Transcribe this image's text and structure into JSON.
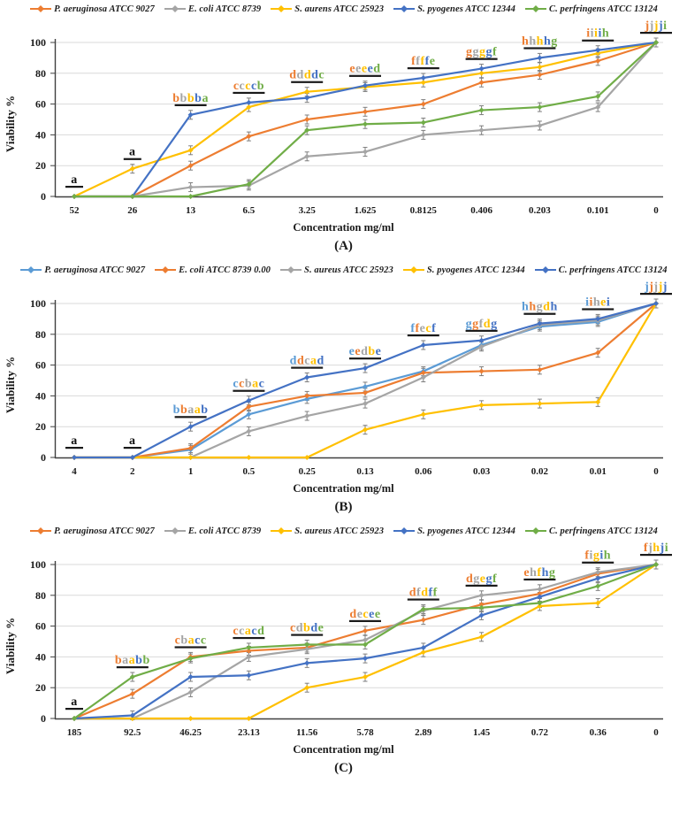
{
  "y_ticks": [
    0,
    20,
    40,
    60,
    80,
    100
  ],
  "chart_data": "see charts[] below",
  "charts": [
    {
      "id": "A",
      "type": "line",
      "caption": "(A)",
      "ylabel": "Viability %",
      "xlabel": "Concentration mg/ml",
      "ylim": [
        0,
        100
      ],
      "grid": true,
      "legend_position": "top",
      "categories": [
        "52",
        "26",
        "13",
        "6.5",
        "3.25",
        "1.625",
        "0.8125",
        "0.406",
        "0.203",
        "0.101",
        "0"
      ],
      "series": [
        {
          "name": "P. aeruginosa ATCC 9027",
          "color": "#ED7D31",
          "values": [
            0,
            0,
            20,
            39,
            50,
            55,
            60,
            74,
            79,
            88,
            100
          ]
        },
        {
          "name": "E. coli ATCC 8739",
          "color": "#A5A5A5",
          "values": [
            0,
            0,
            6,
            7,
            26,
            29,
            40,
            43,
            46,
            58,
            100
          ]
        },
        {
          "name": "S. aurens ATCC 25923",
          "color": "#FFC000",
          "values": [
            0,
            18,
            30,
            58,
            68,
            71,
            74,
            80,
            84,
            93,
            100
          ]
        },
        {
          "name": "S. pyogenes ATCC 12344",
          "color": "#4472C4",
          "values": [
            0,
            0,
            53,
            61,
            64,
            72,
            77,
            83,
            90,
            95,
            100
          ]
        },
        {
          "name": "C. perfringens ATCC 13124",
          "color": "#70AD47",
          "values": [
            0,
            0,
            0,
            8,
            43,
            47,
            48,
            56,
            58,
            65,
            100
          ]
        }
      ],
      "annotations": [
        {
          "x": "52",
          "label": "a"
        },
        {
          "x": "26",
          "label": "a"
        },
        {
          "x": "13",
          "label": "bbbba"
        },
        {
          "x": "6.5",
          "label": "ccccb"
        },
        {
          "x": "3.25",
          "label": "ddddc"
        },
        {
          "x": "1.625",
          "label": "eeeed"
        },
        {
          "x": "0.8125",
          "label": "ffffe"
        },
        {
          "x": "0.406",
          "label": "ggggf"
        },
        {
          "x": "0.203",
          "label": "hhhhg"
        },
        {
          "x": "0.101",
          "label": "iiiih"
        },
        {
          "x": "0",
          "label": "jjjji"
        }
      ]
    },
    {
      "id": "B",
      "type": "line",
      "caption": "(B)",
      "ylabel": "Viability %",
      "xlabel": "Concentration mg/ml",
      "ylim": [
        0,
        100
      ],
      "grid": true,
      "legend_position": "top",
      "categories": [
        "4",
        "2",
        "1",
        "0.5",
        "0.25",
        "0.13",
        "0.06",
        "0.03",
        "0.02",
        "0.01",
        "0"
      ],
      "series": [
        {
          "name": "P. aeruginosa ATCC 9027",
          "color": "#5B9BD5",
          "values": [
            0,
            0,
            5,
            28,
            38,
            46,
            56,
            73,
            85,
            88,
            100
          ]
        },
        {
          "name": "E. coli ATCC 8739 0.00",
          "color": "#ED7D31",
          "values": [
            0,
            0,
            6,
            33,
            40,
            42,
            55,
            56,
            57,
            68,
            100
          ]
        },
        {
          "name": "S. aureus ATCC 25923",
          "color": "#A5A5A5",
          "values": [
            0,
            0,
            0,
            17,
            27,
            35,
            52,
            72,
            86,
            89,
            100
          ]
        },
        {
          "name": "S. pyogenes ATCC 12344",
          "color": "#FFC000",
          "values": [
            0,
            0,
            0,
            0,
            0,
            18,
            28,
            34,
            35,
            36,
            100
          ]
        },
        {
          "name": "C. perfringens ATCC 13124",
          "color": "#4472C4",
          "values": [
            0,
            0,
            20,
            37,
            52,
            58,
            73,
            76,
            87,
            90,
            100
          ]
        }
      ],
      "annotations": [
        {
          "x": "4",
          "label": "a"
        },
        {
          "x": "2",
          "label": "a"
        },
        {
          "x": "1",
          "label": "bbaab"
        },
        {
          "x": "0.5",
          "label": "ccbac"
        },
        {
          "x": "0.25",
          "label": "ddcad"
        },
        {
          "x": "0.13",
          "label": "eedbe"
        },
        {
          "x": "0.06",
          "label": "ffecf"
        },
        {
          "x": "0.03",
          "label": "ggfdg"
        },
        {
          "x": "0.02",
          "label": "hhgdh"
        },
        {
          "x": "0.01",
          "label": "iihei"
        },
        {
          "x": "0",
          "label": "jjjjj"
        }
      ]
    },
    {
      "id": "C",
      "type": "line",
      "caption": "(C)",
      "ylabel": "Viability %",
      "xlabel": "Concentration mg/ml",
      "ylim": [
        0,
        100
      ],
      "grid": true,
      "legend_position": "top",
      "categories": [
        "185",
        "92.5",
        "46.25",
        "23.13",
        "11.56",
        "5.78",
        "2.89",
        "1.45",
        "0.72",
        "0.36",
        "0"
      ],
      "series": [
        {
          "name": "P. aeruginosa ATCC 9027",
          "color": "#ED7D31",
          "values": [
            0,
            16,
            40,
            44,
            46,
            57,
            64,
            74,
            81,
            94,
            100
          ]
        },
        {
          "name": "E. coli ATCC 8739",
          "color": "#A5A5A5",
          "values": [
            0,
            0,
            17,
            40,
            45,
            51,
            70,
            80,
            84,
            95,
            100
          ]
        },
        {
          "name": "S. aureus ATCC 25923",
          "color": "#FFC000",
          "values": [
            0,
            0,
            0,
            0,
            20,
            27,
            43,
            53,
            73,
            75,
            100
          ]
        },
        {
          "name": "S. pyogenes ATCC 12344",
          "color": "#4472C4",
          "values": [
            0,
            2,
            27,
            28,
            36,
            39,
            46,
            67,
            79,
            91,
            100
          ]
        },
        {
          "name": "C. perfringens ATCC 13124",
          "color": "#70AD47",
          "values": [
            0,
            27,
            39,
            46,
            48,
            48,
            71,
            72,
            75,
            86,
            100
          ]
        }
      ],
      "annotations": [
        {
          "x": "185",
          "label": "a"
        },
        {
          "x": "92.5",
          "label": "baabb"
        },
        {
          "x": "46.25",
          "label": "cbacc"
        },
        {
          "x": "23.13",
          "label": "ccacd"
        },
        {
          "x": "11.56",
          "label": "cdbde"
        },
        {
          "x": "5.78",
          "label": "decee"
        },
        {
          "x": "2.89",
          "label": "dfdff"
        },
        {
          "x": "1.45",
          "label": "dgegf"
        },
        {
          "x": "0.72",
          "label": "ehfhg"
        },
        {
          "x": "0.36",
          "label": "figih"
        },
        {
          "x": "0",
          "label": "fjhji"
        }
      ]
    }
  ]
}
